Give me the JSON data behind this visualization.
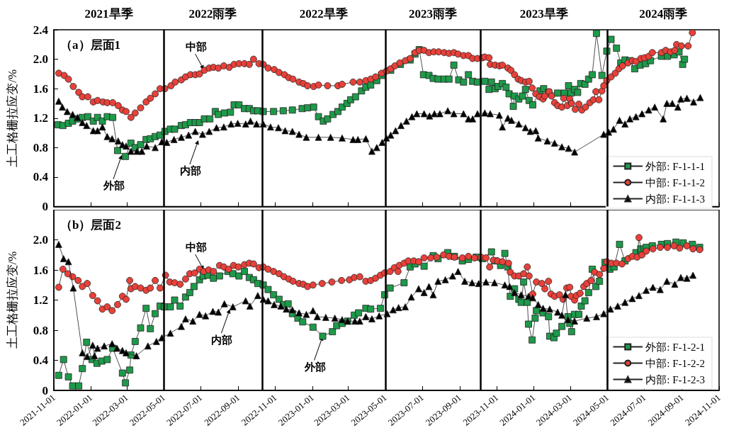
{
  "chart_data": [
    {
      "type": "line",
      "title": "（a）层面1",
      "ylabel": "土工格栅拉应变/%",
      "xlim": [
        "2021-11-01",
        "2024-11-01"
      ],
      "xticks": [
        "2021-11-01",
        "2022-01-01",
        "2022-03-01",
        "2022-05-01",
        "2022-07-01",
        "2022-09-01",
        "2022-11-01",
        "2023-01-01",
        "2023-03-01",
        "2023-05-01",
        "2023-07-01",
        "2023-09-01",
        "2023-11-01",
        "2024-01-01",
        "2024-03-01",
        "2024-05-01",
        "2024-07-01",
        "2024-09-01",
        "2024-11-01"
      ],
      "ylim": [
        0,
        2.4
      ],
      "yticks": [
        0,
        0.4,
        0.8,
        1.2,
        1.6,
        {
          "value": 2,
          "label": "2.0"
        },
        2.4
      ],
      "tick_labels": "y",
      "legend": "bottom right",
      "series": [
        {
          "name": "外部: F-1-1-1",
          "color": "#1e9a4a",
          "marker": "square",
          "x": [
            "2021-11-08",
            "2021-11-16",
            "2021-11-25",
            "2021-12-02",
            "2021-12-10",
            "2021-12-18",
            "2021-12-27",
            "2022-01-05",
            "2022-01-12",
            "2022-01-20",
            "2022-01-28",
            "2022-02-06",
            "2022-02-14",
            "2022-02-27",
            "2022-03-08",
            "2022-03-15",
            "2022-03-24",
            "2022-04-02",
            "2022-04-09",
            "2022-04-17",
            "2022-04-25",
            "2022-05-03",
            "2022-05-12",
            "2022-05-19",
            "2022-05-30",
            "2022-06-06",
            "2022-06-14",
            "2022-06-22",
            "2022-06-29",
            "2022-07-07",
            "2022-07-16",
            "2022-07-25",
            "2022-07-30",
            "2022-08-09",
            "2022-08-19",
            "2022-08-25",
            "2022-09-02",
            "2022-09-11",
            "2022-09-19",
            "2022-09-26",
            "2022-10-03",
            "2022-10-12",
            "2022-10-29",
            "2022-11-14",
            "2022-11-29",
            "2022-12-15",
            "2022-12-24",
            "2023-01-03",
            "2023-01-11",
            "2023-01-19",
            "2023-01-26",
            "2023-02-04",
            "2023-02-12",
            "2023-02-19",
            "2023-02-27",
            "2023-03-05",
            "2023-03-13",
            "2023-03-23",
            "2023-03-30",
            "2023-04-07",
            "2023-04-17",
            "2023-04-25",
            "2023-05-10",
            "2023-05-26",
            "2023-06-11",
            "2023-06-19",
            "2023-06-26",
            "2023-07-03",
            "2023-07-12",
            "2023-07-19",
            "2023-07-27",
            "2023-08-06",
            "2023-08-14",
            "2023-08-22",
            "2023-08-30",
            "2023-09-07",
            "2023-09-15",
            "2023-09-22",
            "2023-09-30",
            "2023-10-12",
            "2023-10-19",
            "2023-10-23",
            "2023-10-29",
            "2023-11-03",
            "2023-11-10",
            "2023-11-16",
            "2023-11-21",
            "2023-11-28",
            "2023-11-30",
            "2023-12-07",
            "2023-12-13",
            "2023-12-18",
            "2023-12-24",
            "2023-12-30",
            "2024-01-11",
            "2024-01-17",
            "2024-01-25",
            "2024-02-09",
            "2024-02-20",
            "2024-02-27",
            "2024-03-02",
            "2024-03-08",
            "2024-03-13",
            "2024-03-18",
            "2024-03-25",
            "2024-03-31",
            "2024-04-06",
            "2024-04-13",
            "2024-04-22",
            "2024-04-30",
            "2024-05-07",
            "2024-05-16",
            "2024-05-23",
            "2024-05-30",
            "2024-06-07",
            "2024-06-15",
            "2024-06-24",
            "2024-07-03",
            "2024-07-11",
            "2024-07-29",
            "2024-08-08",
            "2024-08-19",
            "2024-08-27",
            "2024-09-02",
            "2024-09-05"
          ],
          "values": [
            1.11,
            1.1,
            1.13,
            1.16,
            1.19,
            1.21,
            1.22,
            1.16,
            1.21,
            1.16,
            1.22,
            1.21,
            0.76,
            0.68,
            0.86,
            0.8,
            0.84,
            0.91,
            0.92,
            0.95,
            0.97,
            1.02,
            1.05,
            1.05,
            1.1,
            1.11,
            1.14,
            1.14,
            1.14,
            1.19,
            1.19,
            1.29,
            1.25,
            1.27,
            1.28,
            1.38,
            1.38,
            1.33,
            1.33,
            1.3,
            1.3,
            1.29,
            1.29,
            1.3,
            1.31,
            1.33,
            1.34,
            1.35,
            1.22,
            1.16,
            1.19,
            1.25,
            1.29,
            1.35,
            1.4,
            1.45,
            1.49,
            1.57,
            1.62,
            1.65,
            1.71,
            1.78,
            1.85,
            1.93,
            1.99,
            2.07,
            2.13,
            1.79,
            1.78,
            1.74,
            1.73,
            1.73,
            1.73,
            1.92,
            1.72,
            1.69,
            1.79,
            1.7,
            1.69,
            1.7,
            1.59,
            1.69,
            1.6,
            1.63,
            1.67,
            1.62,
            1.53,
            1.36,
            1.5,
            1.46,
            1.5,
            1.59,
            1.44,
            1.38,
            1.57,
            1.6,
            1.55,
            1.54,
            1.54,
            1.64,
            1.54,
            1.59,
            1.55,
            1.67,
            1.66,
            1.73,
            1.79,
            2.35,
            1.78,
            2.11,
            2.27,
            2.15,
            1.95,
            1.99,
            1.98,
            1.87,
            1.92,
            1.94,
            1.98,
            2.04,
            2.04,
            2.06,
            2.1,
            1.93,
            2.0
          ]
        },
        {
          "name": "中部: F-1-1-2",
          "color": "#e8413a",
          "marker": "circle",
          "x": [
            "2021-11-09",
            "2021-11-18",
            "2021-11-25",
            "2021-12-03",
            "2021-12-12",
            "2021-12-18",
            "2021-12-27",
            "2022-01-05",
            "2022-01-12",
            "2022-01-21",
            "2022-01-28",
            "2022-02-06",
            "2022-02-15",
            "2022-02-22",
            "2022-02-28",
            "2022-03-08",
            "2022-03-15",
            "2022-03-24",
            "2022-04-02",
            "2022-04-09",
            "2022-04-17",
            "2022-04-25",
            "2022-05-03",
            "2022-05-13",
            "2022-05-20",
            "2022-05-30",
            "2022-06-06",
            "2022-06-14",
            "2022-06-22",
            "2022-06-29",
            "2022-07-07",
            "2022-07-15",
            "2022-07-22",
            "2022-07-30",
            "2022-08-08",
            "2022-08-17",
            "2022-08-25",
            "2022-09-02",
            "2022-09-11",
            "2022-09-19",
            "2022-09-26",
            "2022-10-05",
            "2022-10-12",
            "2022-10-20",
            "2022-10-30",
            "2022-11-07",
            "2022-11-16",
            "2022-11-23",
            "2022-11-30",
            "2022-12-10",
            "2022-12-17",
            "2022-12-24",
            "2023-01-03",
            "2023-01-11",
            "2023-01-26",
            "2023-02-12",
            "2023-02-19",
            "2023-03-09",
            "2023-03-20",
            "2023-03-30",
            "2023-04-07",
            "2023-04-15",
            "2023-04-25",
            "2023-05-03",
            "2023-05-10",
            "2023-05-17",
            "2023-05-25",
            "2023-06-03",
            "2023-06-11",
            "2023-06-19",
            "2023-06-26",
            "2023-07-04",
            "2023-07-12",
            "2023-07-20",
            "2023-07-28",
            "2023-08-06",
            "2023-08-14",
            "2023-08-22",
            "2023-08-29",
            "2023-09-07",
            "2023-09-15",
            "2023-09-22",
            "2023-09-30",
            "2023-10-08",
            "2023-10-12",
            "2023-10-19",
            "2023-10-21",
            "2023-10-29",
            "2023-11-05",
            "2023-11-10",
            "2023-11-19",
            "2023-11-24",
            "2023-11-30",
            "2023-12-06",
            "2023-12-11",
            "2023-12-18",
            "2023-12-24",
            "2023-12-29",
            "2024-01-04",
            "2024-01-10",
            "2024-01-16",
            "2024-01-19",
            "2024-01-26",
            "2024-01-30",
            "2024-02-04",
            "2024-02-09",
            "2024-02-16",
            "2024-02-19",
            "2024-02-25",
            "2024-02-29",
            "2024-03-03",
            "2024-03-09",
            "2024-03-15",
            "2024-03-20",
            "2024-03-26",
            "2024-04-02",
            "2024-04-08",
            "2024-04-12",
            "2024-04-17",
            "2024-04-22",
            "2024-04-25",
            "2024-04-30",
            "2024-05-07",
            "2024-05-14",
            "2024-05-20",
            "2024-05-26",
            "2024-06-04",
            "2024-06-11",
            "2024-06-17",
            "2024-06-25",
            "2024-07-01",
            "2024-07-08",
            "2024-07-14",
            "2024-07-29",
            "2024-08-05",
            "2024-08-13",
            "2024-08-20",
            "2024-08-23",
            "2024-08-31",
            "2024-09-11",
            "2024-09-18"
          ],
          "values": [
            1.81,
            1.78,
            1.73,
            1.63,
            1.55,
            1.49,
            1.49,
            1.42,
            1.44,
            1.42,
            1.41,
            1.41,
            1.37,
            1.31,
            1.29,
            1.21,
            1.27,
            1.34,
            1.42,
            1.47,
            1.53,
            1.6,
            1.6,
            1.64,
            1.69,
            1.72,
            1.76,
            1.79,
            1.79,
            1.8,
            1.85,
            1.88,
            1.89,
            1.88,
            1.91,
            1.89,
            1.93,
            1.94,
            1.94,
            1.93,
            2.0,
            1.94,
            1.93,
            1.88,
            1.86,
            1.82,
            1.79,
            1.75,
            1.73,
            1.69,
            1.67,
            1.64,
            1.63,
            1.65,
            1.64,
            1.64,
            1.66,
            1.69,
            1.69,
            1.71,
            1.73,
            1.76,
            1.81,
            1.84,
            1.87,
            1.91,
            1.95,
            1.98,
            2.01,
            2.09,
            2.12,
            2.12,
            2.09,
            2.1,
            2.1,
            2.09,
            2.08,
            2.09,
            2.07,
            2.05,
            2.05,
            2.01,
            2.01,
            2.02,
            2.03,
            2.02,
            1.93,
            1.92,
            1.91,
            1.92,
            1.88,
            1.85,
            1.79,
            1.73,
            1.71,
            1.69,
            1.7,
            1.61,
            1.53,
            1.49,
            1.46,
            1.5,
            1.56,
            1.5,
            1.41,
            1.37,
            1.35,
            1.47,
            1.37,
            1.46,
            1.4,
            1.32,
            1.39,
            1.31,
            1.35,
            1.41,
            1.45,
            1.56,
            1.45,
            1.57,
            1.64,
            1.71,
            1.76,
            1.81,
            1.87,
            1.91,
            1.95,
            1.98,
            1.97,
            2.01,
            2.02,
            2.04,
            2.09,
            2.09,
            2.12,
            2.1,
            2.12,
            2.2,
            2.18,
            2.18,
            2.36
          ]
        },
        {
          "name": "内部: F-1-1-3",
          "color": "#000000",
          "marker": "triangle",
          "x": [
            "2021-11-09",
            "2021-11-15",
            "2021-11-23",
            "2021-12-02",
            "2021-12-10",
            "2021-12-18",
            "2021-12-25",
            "2022-01-05",
            "2022-01-12",
            "2022-01-20",
            "2022-01-28",
            "2022-02-05",
            "2022-02-15",
            "2022-02-22",
            "2022-02-28",
            "2022-03-08",
            "2022-03-18",
            "2022-03-26",
            "2022-04-03",
            "2022-04-17",
            "2022-04-28",
            "2022-05-06",
            "2022-05-18",
            "2022-05-30",
            "2022-06-11",
            "2022-06-22",
            "2022-07-04",
            "2022-07-15",
            "2022-07-27",
            "2022-08-08",
            "2022-08-20",
            "2022-08-31",
            "2022-09-13",
            "2022-09-21",
            "2022-10-01",
            "2022-10-12",
            "2022-10-24",
            "2022-11-06",
            "2022-11-17",
            "2022-11-29",
            "2022-12-10",
            "2022-12-22",
            "2023-01-11",
            "2023-01-31",
            "2023-02-19",
            "2023-03-09",
            "2023-03-17",
            "2023-03-30",
            "2023-04-09",
            "2023-04-17",
            "2023-04-26",
            "2023-05-03",
            "2023-05-10",
            "2023-05-18",
            "2023-05-27",
            "2023-06-05",
            "2023-06-14",
            "2023-06-22",
            "2023-07-04",
            "2023-07-13",
            "2023-07-21",
            "2023-07-30",
            "2023-08-12",
            "2023-08-22",
            "2023-09-07",
            "2023-09-15",
            "2023-09-22",
            "2023-09-30",
            "2023-10-12",
            "2023-10-21",
            "2023-11-05",
            "2023-11-10",
            "2023-11-19",
            "2023-11-25",
            "2023-12-07",
            "2023-12-18",
            "2023-12-26",
            "2024-01-04",
            "2024-01-08",
            "2024-01-23",
            "2024-02-04",
            "2024-02-16",
            "2024-02-27",
            "2024-03-08",
            "2024-04-25",
            "2024-05-03",
            "2024-05-11",
            "2024-05-21",
            "2024-05-30",
            "2024-06-07",
            "2024-06-17",
            "2024-06-27",
            "2024-07-08",
            "2024-07-18",
            "2024-08-01",
            "2024-08-07",
            "2024-08-16",
            "2024-08-25",
            "2024-08-30",
            "2024-09-09",
            "2024-09-20",
            "2024-10-01"
          ],
          "values": [
            1.43,
            1.35,
            1.29,
            1.25,
            1.21,
            1.14,
            1.1,
            1.03,
            1.03,
            1.08,
            0.95,
            0.92,
            0.89,
            0.84,
            0.82,
            0.75,
            0.75,
            0.75,
            0.82,
            0.8,
            0.88,
            0.87,
            0.91,
            0.94,
            0.97,
            1.02,
            0.98,
            1.02,
            1.07,
            1.08,
            1.12,
            1.13,
            1.12,
            1.16,
            1.12,
            1.12,
            1.08,
            1.07,
            1.03,
            1.02,
            0.98,
            0.94,
            0.94,
            0.94,
            0.93,
            0.91,
            0.91,
            0.92,
            0.75,
            0.8,
            0.87,
            0.93,
            0.97,
            1.03,
            1.1,
            1.16,
            1.22,
            1.26,
            1.26,
            1.23,
            1.26,
            1.26,
            1.3,
            1.26,
            1.26,
            1.19,
            1.19,
            1.26,
            1.27,
            1.26,
            1.24,
            1.08,
            1.2,
            1.17,
            1.12,
            1.07,
            1.02,
            1.03,
            0.93,
            0.89,
            0.86,
            0.81,
            0.79,
            0.74,
            0.98,
            1.01,
            1.05,
            1.17,
            1.12,
            1.19,
            1.22,
            1.26,
            1.31,
            1.35,
            1.19,
            1.4,
            1.4,
            1.35,
            1.46,
            1.47,
            1.42,
            1.48
          ]
        }
      ],
      "ref_lines": [
        {
          "axis": "x",
          "value": "2022-05-01"
        },
        {
          "axis": "x",
          "value": "2022-10-10"
        },
        {
          "axis": "x",
          "value": "2023-05-01"
        },
        {
          "axis": "x",
          "value": "2023-10-05"
        },
        {
          "axis": "x",
          "value": "2024-05-01"
        }
      ],
      "annotations": [
        "2021旱季",
        "2022雨季",
        "2022旱季",
        "2023雨季",
        "2023旱季",
        "2024雨季",
        {
          "text": "中部",
          "x": "2022-07-06",
          "y": 1.86
        },
        {
          "text": "外部",
          "x": "2022-02-21",
          "y": 0.7
        },
        {
          "text": "内部",
          "x": "2022-06-27",
          "y": 0.9
        }
      ]
    },
    {
      "type": "line",
      "title": "（b）层面2",
      "ylabel": "土工格栅拉应变/%",
      "xlim": [
        "2021-11-01",
        "2024-11-01"
      ],
      "xticks": [
        "2021-11-01",
        "2022-01-01",
        "2022-03-01",
        "2022-05-01",
        "2022-07-01",
        "2022-09-01",
        "2022-11-01",
        "2023-01-01",
        "2023-03-01",
        "2023-05-01",
        "2023-07-01",
        "2023-09-01",
        "2023-11-01",
        "2024-01-01",
        "2024-03-01",
        "2024-05-01",
        "2024-07-01",
        "2024-09-01",
        "2024-11-01"
      ],
      "ylim": [
        0,
        2.4
      ],
      "yticks": [
        0,
        0.4,
        0.8,
        1.2,
        1.6,
        {
          "value": 2,
          "label": "2.0"
        }
      ],
      "legend": "bottom right",
      "series": [
        {
          "name": "外部: F-1-2-1",
          "color": "#1e9a4a",
          "marker": "square",
          "x": [
            "2021-11-09",
            "2021-11-17",
            "2021-11-25",
            "2021-12-02",
            "2021-12-12",
            "2021-12-18",
            "2021-12-25",
            "2022-01-03",
            "2022-01-11",
            "2022-01-19",
            "2022-01-28",
            "2022-02-06",
            "2022-02-22",
            "2022-02-27",
            "2022-03-06",
            "2022-03-08",
            "2022-03-15",
            "2022-03-24",
            "2022-04-02",
            "2022-04-09",
            "2022-04-17",
            "2022-04-25",
            "2022-05-02",
            "2022-05-12",
            "2022-05-19",
            "2022-05-28",
            "2022-06-06",
            "2022-06-13",
            "2022-06-20",
            "2022-06-29",
            "2022-07-05",
            "2022-07-13",
            "2022-07-22",
            "2022-08-01",
            "2022-08-15",
            "2022-08-23",
            "2022-09-02",
            "2022-09-11",
            "2022-09-19",
            "2022-09-26",
            "2022-10-03",
            "2022-10-12",
            "2022-10-20",
            "2022-10-29",
            "2022-11-07",
            "2022-11-14",
            "2022-11-22",
            "2022-11-29",
            "2022-12-08",
            "2022-12-16",
            "2023-01-02",
            "2023-01-18",
            "2023-02-03",
            "2023-02-10",
            "2023-02-19",
            "2023-02-28",
            "2023-03-11",
            "2023-03-18",
            "2023-03-30",
            "2023-04-07",
            "2023-04-23",
            "2023-04-30",
            "2023-05-09",
            "2023-06-01",
            "2023-06-11",
            "2023-06-19",
            "2023-07-04",
            "2023-07-19",
            "2023-07-27",
            "2023-08-12",
            "2023-08-23",
            "2023-09-05",
            "2023-09-15",
            "2023-09-28",
            "2023-10-08",
            "2023-10-23",
            "2023-10-29",
            "2023-11-07",
            "2023-11-14",
            "2023-11-19",
            "2023-11-23",
            "2023-11-30",
            "2023-12-07",
            "2023-12-11",
            "2023-12-15",
            "2023-12-21",
            "2023-12-23",
            "2023-12-29",
            "2024-01-03",
            "2024-01-05",
            "2024-01-16",
            "2024-01-25",
            "2024-01-27",
            "2024-02-03",
            "2024-02-07",
            "2024-02-16",
            "2024-02-26",
            "2024-02-29",
            "2024-03-03",
            "2024-03-08",
            "2024-03-15",
            "2024-03-19",
            "2024-03-25",
            "2024-03-31",
            "2024-04-06",
            "2024-04-12",
            "2024-04-18",
            "2024-04-27",
            "2024-05-05",
            "2024-05-12",
            "2024-05-21",
            "2024-05-30",
            "2024-06-17",
            "2024-06-25",
            "2024-07-04",
            "2024-07-14",
            "2024-07-29",
            "2024-08-08",
            "2024-08-22",
            "2024-09-03",
            "2024-09-18",
            "2024-09-30"
          ],
          "values": [
            0.2,
            0.41,
            0.18,
            0.06,
            0.06,
            0.29,
            0.64,
            0.41,
            0.36,
            0.39,
            0.41,
            0.56,
            0.23,
            0.1,
            0.27,
            0.47,
            0.65,
            0.83,
            1.09,
            0.82,
            1.02,
            1.12,
            1.11,
            1.11,
            1.2,
            1.12,
            1.24,
            1.3,
            1.38,
            1.47,
            1.52,
            1.53,
            1.49,
            1.52,
            1.58,
            1.55,
            1.52,
            1.58,
            1.5,
            1.47,
            1.42,
            1.4,
            1.34,
            1.27,
            1.21,
            1.14,
            1.15,
            1.02,
            0.96,
            0.91,
            0.84,
            0.72,
            0.78,
            0.86,
            0.89,
            0.92,
            1.0,
            1.03,
            1.09,
            1.08,
            1.09,
            1.27,
            1.36,
            1.43,
            1.64,
            1.68,
            1.65,
            1.79,
            1.75,
            1.83,
            1.78,
            1.72,
            1.74,
            1.77,
            1.75,
            1.84,
            1.72,
            1.66,
            1.82,
            1.64,
            1.25,
            1.35,
            1.21,
            1.17,
            1.44,
            1.17,
            0.88,
            0.67,
            0.96,
            1.06,
            1.03,
            0.98,
            0.72,
            0.7,
            0.76,
            0.85,
            0.98,
            0.89,
            0.78,
            1.01,
            1.01,
            1.12,
            1.19,
            1.3,
            1.61,
            1.38,
            1.45,
            1.7,
            1.61,
            1.64,
            1.94,
            1.72,
            1.83,
            1.88,
            1.9,
            1.92,
            1.94,
            1.95,
            1.97,
            1.96,
            1.94,
            1.9
          ]
        },
        {
          "name": "中部: F-1-2-2",
          "color": "#e8413a",
          "marker": "circle",
          "x": [
            "2021-11-09",
            "2021-11-16",
            "2021-11-24",
            "2021-12-02",
            "2021-12-11",
            "2021-12-18",
            "2021-12-26",
            "2022-01-04",
            "2022-01-12",
            "2022-01-20",
            "2022-01-28",
            "2022-02-05",
            "2022-02-14",
            "2022-02-22",
            "2022-02-28",
            "2022-03-06",
            "2022-03-08",
            "2022-03-15",
            "2022-03-24",
            "2022-04-02",
            "2022-04-09",
            "2022-04-17",
            "2022-04-25",
            "2022-05-04",
            "2022-05-11",
            "2022-05-19",
            "2022-05-28",
            "2022-06-06",
            "2022-06-13",
            "2022-06-21",
            "2022-06-29",
            "2022-07-06",
            "2022-07-14",
            "2022-07-22",
            "2022-08-01",
            "2022-08-08",
            "2022-08-16",
            "2022-08-24",
            "2022-09-01",
            "2022-09-11",
            "2022-09-19",
            "2022-09-26",
            "2022-10-05",
            "2022-10-12",
            "2022-10-20",
            "2022-10-29",
            "2022-11-07",
            "2022-11-15",
            "2022-11-23",
            "2022-11-30",
            "2022-12-10",
            "2022-12-17",
            "2022-12-24",
            "2023-01-02",
            "2023-01-17",
            "2023-02-02",
            "2023-02-18",
            "2023-03-03",
            "2023-03-11",
            "2023-03-20",
            "2023-03-30",
            "2023-04-07",
            "2023-04-15",
            "2023-04-23",
            "2023-04-30",
            "2023-05-09",
            "2023-05-16",
            "2023-05-22",
            "2023-05-24",
            "2023-06-01",
            "2023-06-08",
            "2023-06-17",
            "2023-06-25",
            "2023-07-04",
            "2023-07-15",
            "2023-07-25",
            "2023-08-05",
            "2023-08-14",
            "2023-08-23",
            "2023-09-05",
            "2023-09-15",
            "2023-09-25",
            "2023-10-06",
            "2023-10-14",
            "2023-10-20",
            "2023-10-26",
            "2023-11-02",
            "2023-11-10",
            "2023-11-20",
            "2023-11-23",
            "2023-11-30",
            "2023-12-07",
            "2023-12-15",
            "2023-12-21",
            "2023-12-24",
            "2023-12-30",
            "2024-01-05",
            "2024-01-14",
            "2024-01-19",
            "2024-01-25",
            "2024-01-29",
            "2024-02-04",
            "2024-02-12",
            "2024-02-18",
            "2024-02-24",
            "2024-02-29",
            "2024-03-02",
            "2024-03-08",
            "2024-03-11",
            "2024-03-17",
            "2024-03-23",
            "2024-03-28",
            "2024-04-04",
            "2024-04-10",
            "2024-04-18",
            "2024-04-25",
            "2024-04-30",
            "2024-05-08",
            "2024-05-16",
            "2024-05-25",
            "2024-06-04",
            "2024-06-11",
            "2024-06-19",
            "2024-06-22",
            "2024-06-27",
            "2024-07-04",
            "2024-07-15",
            "2024-07-27",
            "2024-08-08",
            "2024-08-19",
            "2024-08-28",
            "2024-09-09",
            "2024-09-19",
            "2024-09-30"
          ],
          "values": [
            1.37,
            1.61,
            1.55,
            1.51,
            1.46,
            1.38,
            1.42,
            1.26,
            1.19,
            1.08,
            1.11,
            1.06,
            1.14,
            1.25,
            1.21,
            1.46,
            1.35,
            1.38,
            1.36,
            1.33,
            1.36,
            1.46,
            1.36,
            1.53,
            1.44,
            1.43,
            1.41,
            1.48,
            1.55,
            1.56,
            1.61,
            1.58,
            1.6,
            1.58,
            1.66,
            1.64,
            1.61,
            1.66,
            1.64,
            1.67,
            1.69,
            1.68,
            1.63,
            1.64,
            1.61,
            1.58,
            1.55,
            1.51,
            1.48,
            1.45,
            1.42,
            1.41,
            1.38,
            1.4,
            1.42,
            1.44,
            1.46,
            1.47,
            1.5,
            1.51,
            1.45,
            1.46,
            1.49,
            1.53,
            1.56,
            1.58,
            1.63,
            1.58,
            1.66,
            1.69,
            1.72,
            1.72,
            1.71,
            1.76,
            1.76,
            1.77,
            1.8,
            1.78,
            1.77,
            1.76,
            1.78,
            1.76,
            1.77,
            1.76,
            1.64,
            1.73,
            1.72,
            1.71,
            1.69,
            1.57,
            1.52,
            1.52,
            1.55,
            1.64,
            1.52,
            1.28,
            1.44,
            1.42,
            1.35,
            1.45,
            1.28,
            1.25,
            1.27,
            1.21,
            1.36,
            1.37,
            1.25,
            1.2,
            1.26,
            1.29,
            1.38,
            1.42,
            1.46,
            1.57,
            1.54,
            1.62,
            1.71,
            1.69,
            1.69,
            1.68,
            1.75,
            1.78,
            1.77,
            2.03,
            1.8,
            1.85,
            1.88,
            1.9,
            1.9,
            1.92,
            1.89,
            1.92,
            1.88,
            1.87
          ]
        },
        {
          "name": "内部: F-1-2-3",
          "color": "#000000",
          "marker": "triangle",
          "x": [
            "2021-11-09",
            "2021-11-17",
            "2021-11-25",
            "2021-12-03",
            "2021-12-18",
            "2021-12-26",
            "2022-01-04",
            "2022-01-07",
            "2022-01-12",
            "2022-01-23",
            "2022-02-05",
            "2022-02-13",
            "2022-02-22",
            "2022-02-28",
            "2022-03-17",
            "2022-04-05",
            "2022-04-19",
            "2022-04-28",
            "2022-05-12",
            "2022-05-30",
            "2022-06-06",
            "2022-06-18",
            "2022-06-29",
            "2022-07-09",
            "2022-07-21",
            "2022-07-30",
            "2022-08-09",
            "2022-08-23",
            "2022-09-13",
            "2022-09-20",
            "2022-10-03",
            "2022-10-12",
            "2022-10-20",
            "2022-10-30",
            "2022-11-10",
            "2022-11-19",
            "2022-11-29",
            "2022-12-10",
            "2022-12-22",
            "2023-01-02",
            "2023-01-09",
            "2023-01-23",
            "2023-02-07",
            "2023-02-19",
            "2023-02-28",
            "2023-03-12",
            "2023-03-20",
            "2023-03-30",
            "2023-04-09",
            "2023-04-21",
            "2023-05-04",
            "2023-05-14",
            "2023-05-23",
            "2023-06-03",
            "2023-06-13",
            "2023-06-25",
            "2023-07-04",
            "2023-07-12",
            "2023-07-19",
            "2023-07-27",
            "2023-08-08",
            "2023-08-20",
            "2023-08-29",
            "2023-09-09",
            "2023-09-21",
            "2023-10-02",
            "2023-10-14",
            "2023-10-28",
            "2023-11-14",
            "2023-11-22",
            "2023-11-30",
            "2023-12-11",
            "2023-12-23",
            "2023-12-30",
            "2024-01-08",
            "2024-01-16",
            "2024-01-27",
            "2024-02-09",
            "2024-02-16",
            "2024-02-22",
            "2024-02-26",
            "2024-03-08",
            "2024-03-28",
            "2024-04-13",
            "2024-04-25",
            "2024-05-06",
            "2024-05-18",
            "2024-05-30",
            "2024-06-11",
            "2024-06-22",
            "2024-07-04",
            "2024-07-15",
            "2024-07-27",
            "2024-08-07",
            "2024-08-20",
            "2024-08-30",
            "2024-09-09",
            "2024-09-19"
          ],
          "values": [
            1.94,
            1.75,
            1.71,
            1.36,
            0.5,
            0.45,
            0.6,
            0.46,
            0.56,
            0.59,
            0.62,
            0.56,
            0.53,
            0.5,
            0.46,
            0.59,
            0.65,
            0.7,
            0.76,
            0.85,
            0.95,
            0.92,
            1.01,
            0.99,
            1.05,
            1.04,
            1.15,
            1.11,
            1.19,
            1.12,
            1.26,
            1.21,
            1.19,
            1.14,
            1.12,
            1.08,
            1.07,
            1.03,
            1.01,
            1.06,
            0.98,
            0.97,
            0.96,
            0.94,
            0.92,
            0.92,
            0.92,
            0.98,
            0.95,
            0.99,
            1.02,
            1.07,
            1.1,
            1.11,
            1.24,
            1.35,
            1.3,
            1.38,
            1.27,
            1.45,
            1.47,
            1.52,
            1.58,
            1.45,
            1.43,
            1.42,
            1.44,
            1.43,
            1.4,
            1.38,
            1.3,
            1.27,
            1.25,
            1.23,
            1.14,
            1.09,
            1.08,
            1.04,
            1.0,
            1.27,
            0.94,
            0.92,
            0.96,
            0.98,
            1.02,
            1.08,
            1.12,
            1.17,
            1.22,
            1.26,
            1.33,
            1.37,
            1.34,
            1.45,
            1.41,
            1.5,
            1.49,
            1.53
          ]
        }
      ],
      "ref_lines": [
        {
          "axis": "x",
          "value": "2022-05-01"
        },
        {
          "axis": "x",
          "value": "2022-10-10"
        },
        {
          "axis": "x",
          "value": "2023-05-01"
        },
        {
          "axis": "x",
          "value": "2023-10-05"
        },
        {
          "axis": "x",
          "value": "2024-05-01"
        }
      ],
      "annotations": [
        {
          "text": "中部",
          "x": "2022-07-06",
          "y": 1.6
        },
        {
          "text": "内部",
          "x": "2022-08-18",
          "y": 1.08
        },
        {
          "text": "外部",
          "x": "2023-01-18",
          "y": 0.72
        }
      ]
    }
  ]
}
